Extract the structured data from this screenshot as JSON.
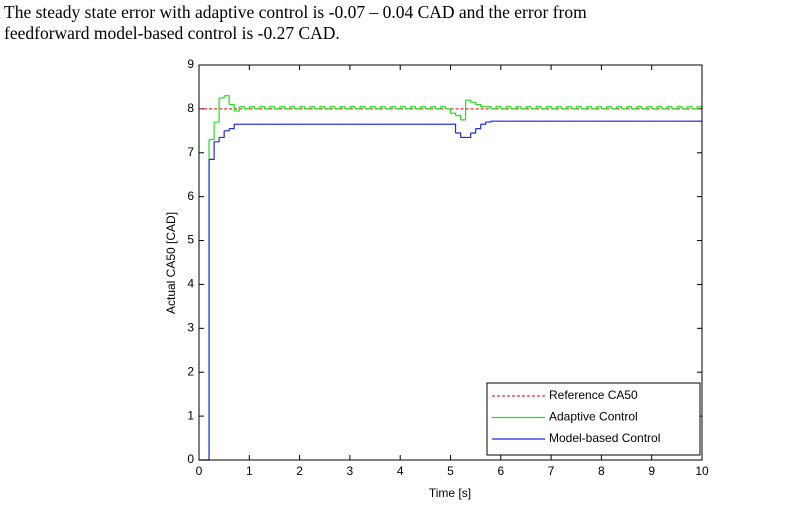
{
  "text": [
    "The steady state error with adaptive control is -0.07 – 0.04 CAD and the error from",
    "feedforward model-based control is -0.27 CAD."
  ],
  "chart_data": {
    "type": "step",
    "xlabel": "Time [s]",
    "ylabel": "Actual CA50 [CAD]",
    "xlim": [
      0,
      10
    ],
    "ylim": [
      0,
      9
    ],
    "xticks": [
      0,
      1,
      2,
      3,
      4,
      5,
      6,
      7,
      8,
      9,
      10
    ],
    "yticks": [
      0,
      1,
      2,
      3,
      4,
      5,
      6,
      7,
      8,
      9
    ],
    "legend": "lower right",
    "x": [
      0,
      0.1,
      0.2,
      0.3,
      0.4,
      0.5,
      0.6,
      0.7,
      0.8,
      0.9,
      1,
      1.1,
      1.2,
      1.3,
      1.4,
      1.5,
      1.6,
      1.7,
      1.8,
      1.9,
      2,
      2.1,
      2.2,
      2.3,
      2.4,
      2.5,
      2.6,
      2.7,
      2.8,
      2.9,
      3,
      3.1,
      3.2,
      3.3,
      3.4,
      3.5,
      3.6,
      3.7,
      3.8,
      3.9,
      4,
      4.1,
      4.2,
      4.3,
      4.4,
      4.5,
      4.6,
      4.7,
      4.8,
      4.9,
      5,
      5.1,
      5.2,
      5.3,
      5.4,
      5.5,
      5.6,
      5.7,
      5.8,
      5.9,
      6,
      6.1,
      6.2,
      6.3,
      6.4,
      6.5,
      6.6,
      6.7,
      6.8,
      6.9,
      7,
      7.1,
      7.2,
      7.3,
      7.4,
      7.5,
      7.6,
      7.7,
      7.8,
      7.9,
      8,
      8.1,
      8.2,
      8.3,
      8.4,
      8.5,
      8.6,
      8.7,
      8.8,
      8.9,
      9,
      9.1,
      9.2,
      9.3,
      9.4,
      9.5,
      9.6,
      9.7,
      9.8,
      9.9,
      10
    ],
    "series": [
      {
        "name": "Reference CA50",
        "color": "#e03030",
        "dashed": true,
        "values": [
          8,
          8,
          8,
          8,
          8,
          8,
          8,
          8,
          8,
          8,
          8,
          8,
          8,
          8,
          8,
          8,
          8,
          8,
          8,
          8,
          8,
          8,
          8,
          8,
          8,
          8,
          8,
          8,
          8,
          8,
          8,
          8,
          8,
          8,
          8,
          8,
          8,
          8,
          8,
          8,
          8,
          8,
          8,
          8,
          8,
          8,
          8,
          8,
          8,
          8,
          8,
          8,
          8,
          8,
          8,
          8,
          8,
          8,
          8,
          8,
          8,
          8,
          8,
          8,
          8,
          8,
          8,
          8,
          8,
          8,
          8,
          8,
          8,
          8,
          8,
          8,
          8,
          8,
          8,
          8,
          8,
          8,
          8,
          8,
          8,
          8,
          8,
          8,
          8,
          8,
          8,
          8,
          8,
          8,
          8,
          8,
          8,
          8,
          8,
          8,
          8
        ]
      },
      {
        "name": "Adaptive Control",
        "color": "#22dd22",
        "dashed": false,
        "values": [
          0,
          0,
          7.3,
          7.7,
          8.25,
          8.3,
          8.1,
          7.95,
          8.05,
          8,
          8.05,
          8,
          8.05,
          8,
          8.05,
          8,
          8.05,
          8,
          8.05,
          8,
          8.05,
          8,
          8.05,
          8,
          8.05,
          8,
          8.05,
          8,
          8.05,
          8,
          8.05,
          8,
          8.05,
          8,
          8.05,
          8,
          8.05,
          8,
          8.05,
          8,
          8.05,
          8,
          8.05,
          8,
          8.05,
          8,
          8.05,
          8,
          8.05,
          8,
          7.9,
          7.85,
          7.75,
          8.2,
          8.15,
          8.1,
          8.05,
          8.05,
          8,
          8.05,
          8,
          8.05,
          8,
          8.05,
          8,
          8.05,
          8,
          8.05,
          8,
          8.05,
          8,
          8.05,
          8,
          8.05,
          8,
          8.05,
          8,
          8.05,
          8,
          8.05,
          8,
          8.05,
          8,
          8.05,
          8,
          8.05,
          8,
          8.05,
          8,
          8.05,
          8,
          8.05,
          8,
          8.05,
          8,
          8.05,
          8,
          8.05,
          8,
          8.05,
          8
        ]
      },
      {
        "name": "Model-based Control",
        "color": "#1f2fd8",
        "dashed": false,
        "values": [
          0,
          0,
          6.85,
          7.25,
          7.35,
          7.5,
          7.55,
          7.65,
          7.65,
          7.65,
          7.65,
          7.65,
          7.65,
          7.65,
          7.65,
          7.65,
          7.65,
          7.65,
          7.65,
          7.65,
          7.65,
          7.65,
          7.65,
          7.65,
          7.65,
          7.65,
          7.65,
          7.65,
          7.65,
          7.65,
          7.65,
          7.65,
          7.65,
          7.65,
          7.65,
          7.65,
          7.65,
          7.65,
          7.65,
          7.65,
          7.65,
          7.65,
          7.65,
          7.65,
          7.65,
          7.65,
          7.65,
          7.65,
          7.65,
          7.65,
          7.65,
          7.45,
          7.35,
          7.35,
          7.45,
          7.55,
          7.65,
          7.7,
          7.72,
          7.72,
          7.72,
          7.72,
          7.72,
          7.72,
          7.72,
          7.72,
          7.72,
          7.72,
          7.72,
          7.72,
          7.72,
          7.72,
          7.72,
          7.72,
          7.72,
          7.72,
          7.72,
          7.72,
          7.72,
          7.72,
          7.72,
          7.72,
          7.72,
          7.72,
          7.72,
          7.72,
          7.72,
          7.72,
          7.72,
          7.72,
          7.72,
          7.72,
          7.72,
          7.72,
          7.72,
          7.72,
          7.72,
          7.72,
          7.72,
          7.72,
          7.72
        ]
      }
    ]
  }
}
